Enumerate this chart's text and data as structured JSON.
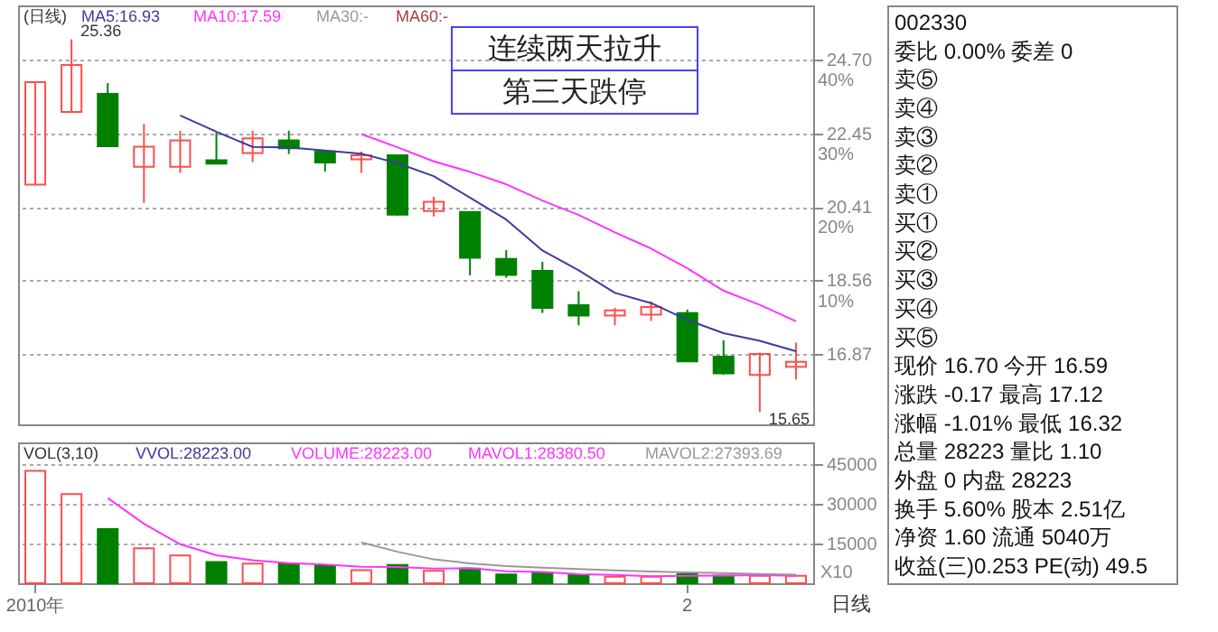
{
  "chart_data": [
    {
      "type": "candlestick",
      "categories": [
        null,
        null,
        null,
        null,
        null,
        null,
        null,
        null,
        null,
        null,
        null,
        null,
        null,
        null,
        null,
        null,
        null,
        null,
        null,
        null,
        null,
        null
      ],
      "ohlc": [
        [
          21.01,
          23.99,
          21.01,
          23.99
        ],
        [
          23.08,
          25.36,
          23.08,
          24.53
        ],
        [
          23.63,
          23.96,
          22.08,
          22.08
        ],
        [
          21.5,
          22.73,
          20.52,
          22.07
        ],
        [
          21.5,
          22.53,
          21.33,
          22.25
        ],
        [
          21.68,
          22.47,
          21.59,
          21.59
        ],
        [
          21.89,
          22.53,
          21.63,
          22.31
        ],
        [
          22.25,
          22.53,
          21.86,
          22.02
        ],
        [
          21.93,
          21.93,
          21.37,
          21.62
        ],
        [
          21.71,
          21.93,
          21.33,
          21.82
        ],
        [
          21.82,
          21.82,
          20.18,
          20.21
        ],
        [
          20.3,
          20.68,
          20.16,
          20.55
        ],
        [
          20.28,
          20.28,
          18.68,
          19.11
        ],
        [
          19.08,
          19.3,
          18.62,
          18.69
        ],
        [
          18.79,
          19.01,
          17.79,
          17.91
        ],
        [
          17.97,
          18.3,
          17.51,
          17.73
        ],
        [
          17.73,
          17.91,
          17.51,
          17.85
        ],
        [
          17.75,
          18.06,
          17.61,
          17.93
        ],
        [
          17.79,
          17.87,
          16.71,
          16.71
        ],
        [
          16.81,
          17.17,
          16.42,
          16.45
        ],
        [
          16.42,
          16.9,
          15.65,
          16.87
        ],
        [
          16.59,
          17.12,
          16.32,
          16.7
        ]
      ],
      "colors": [
        "#ff4d4d",
        "#ff4d4d",
        "#008000",
        "#ff4d4d",
        "#ff4d4d",
        "#008000",
        "#ff4d4d",
        "#008000",
        "#008000",
        "#ff4d4d",
        "#008000",
        "#ff4d4d",
        "#008000",
        "#008000",
        "#008000",
        "#008000",
        "#ff4d4d",
        "#ff4d4d",
        "#008000",
        "#008000",
        "#ff4d4d",
        "#ff4d4d"
      ],
      "series": [
        {
          "type": "line",
          "color": "#3c3c9c",
          "values": [
            null,
            null,
            null,
            null,
            22.98,
            22.5,
            22.06,
            22.05,
            21.96,
            21.87,
            21.6,
            21.24,
            20.66,
            20.08,
            19.29,
            18.8,
            18.26,
            18.02,
            17.63,
            17.33,
            17.16,
            16.93
          ]
        },
        {
          "type": "line",
          "color": "#ff33ff",
          "values": [
            null,
            null,
            null,
            null,
            null,
            null,
            null,
            null,
            null,
            22.43,
            22.05,
            21.65,
            21.36,
            21.02,
            20.58,
            20.2,
            19.75,
            19.34,
            18.85,
            18.31,
            17.98,
            17.6
          ]
        }
      ],
      "log": true,
      "ylim": [
        15.4,
        26.5
      ],
      "yticks": [
        {
          "value": 16.87,
          "label": "16.87"
        },
        {
          "value": 18.56,
          "label": "18.56"
        },
        {
          "value": 20.41,
          "label": "20.41"
        },
        {
          "value": 22.45,
          "label": "22.45"
        },
        {
          "value": 24.7,
          "label": "24.70"
        }
      ],
      "y2lim": [
        -9.57,
        47.38
      ],
      "y2ticks": [
        {
          "value": 10,
          "label": "10%"
        },
        {
          "value": 20,
          "label": "20%"
        },
        {
          "value": 30,
          "label": "30%"
        },
        {
          "value": 40,
          "label": "40%"
        }
      ],
      "grid": "y",
      "tick_labels": "y",
      "annotations": [
        "(日线)",
        "MA5:16.93",
        "MA10:17.59",
        "MA30:-",
        "MA60:-",
        "连续两天拉升",
        "第三天跌停",
        "25.36",
        "15.65"
      ]
    },
    {
      "type": "bar",
      "categories": [
        "2010年",
        null,
        null,
        null,
        null,
        null,
        null,
        null,
        null,
        null,
        null,
        null,
        null,
        null,
        null,
        null,
        null,
        null,
        "2",
        null,
        null,
        null
      ],
      "series": [
        {
          "type": "bar",
          "colors": [
            "#ff4d4d",
            "#ff4d4d",
            "#008000",
            "#ff4d4d",
            "#ff4d4d",
            "#008000",
            "#ff4d4d",
            "#008000",
            "#008000",
            "#ff4d4d",
            "#008000",
            "#ff4d4d",
            "#008000",
            "#008000",
            "#008000",
            "#008000",
            "#ff4d4d",
            "#ff4d4d",
            "#008000",
            "#008000",
            "#ff4d4d",
            "#ff4d4d"
          ],
          "values": [
            42280,
            33540,
            20360,
            13190,
            10470,
            7990,
            7420,
            7170,
            6590,
            4950,
            6840,
            4700,
            5520,
            3300,
            3870,
            3050,
            2470,
            2470,
            3400,
            2900,
            2790,
            2822
          ]
        },
        {
          "type": "line",
          "color": "#ff33ff",
          "values": [
            null,
            null,
            32060,
            22363,
            14673,
            10550,
            8627,
            7527,
            7060,
            6237,
            6127,
            5497,
            5687,
            4507,
            4230,
            3407,
            3130,
            2663,
            2780,
            2923,
            3030,
            2837
          ]
        },
        {
          "type": "line",
          "color": "#999999",
          "values": [
            null,
            null,
            null,
            null,
            null,
            null,
            null,
            null,
            null,
            15396,
            11852,
            8968,
            7484,
            6495,
            5835,
            5341,
            4846,
            4376,
            4057,
            3852,
            3447,
            3259
          ]
        }
      ],
      "ylim": [
        0,
        53000
      ],
      "yticks": [
        15000,
        30000,
        45000
      ],
      "grid": "y",
      "annotations": [
        "VOL(3,10)",
        "VVOL:28223.00",
        "VOLUME:28223.00",
        "MAVOL1:28380.50",
        "MAVOL2:27393.69",
        "X10",
        "日线"
      ]
    },
    {
      "type": "other",
      "annotations": [
        "002330",
        "委比  0.00%  委差  0",
        "卖⑤",
        "卖④",
        "卖③",
        "卖②",
        "卖①",
        "买①",
        "买②",
        "买③",
        "买④",
        "买⑤",
        "现价  16.70  今开  16.59",
        "涨跌  -0.17  最高  17.12",
        "涨幅 -1.01%  最低  16.32",
        "总量  28223  量比  1.10",
        "外盘  0  内盘  28223",
        "换手  5.60%  股本  2.51亿",
        "净资  1.60  流通  5040万",
        "收益(三)0.253  PE(动)  49.5"
      ]
    }
  ]
}
